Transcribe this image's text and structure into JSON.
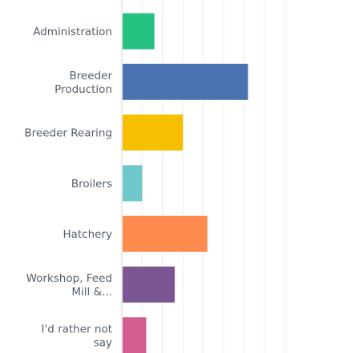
{
  "chart_data": {
    "type": "bar",
    "orientation": "horizontal",
    "categories": [
      "Administration",
      "Breeder Production",
      "Breeder Rearing",
      "Broilers",
      "Hatchery",
      "Workshop, Feed Mill &...",
      "I'd rather not say"
    ],
    "category_lines": [
      [
        "Administration"
      ],
      [
        "Breeder",
        "Production"
      ],
      [
        "Breeder Rearing"
      ],
      [
        "Broilers"
      ],
      [
        "Hatchery"
      ],
      [
        "Workshop, Feed",
        "Mill &..."
      ],
      [
        "I'd rather not",
        "say"
      ]
    ],
    "values": [
      8,
      31,
      15,
      5,
      21,
      13,
      6
    ],
    "colors": [
      "#26c281",
      "#4b73b2",
      "#f6c000",
      "#6ec8cc",
      "#ff8b4f",
      "#7b5693",
      "#d25f90"
    ],
    "xlim": [
      0,
      40
    ],
    "grid": true,
    "title": "",
    "xlabel": "",
    "ylabel": ""
  }
}
